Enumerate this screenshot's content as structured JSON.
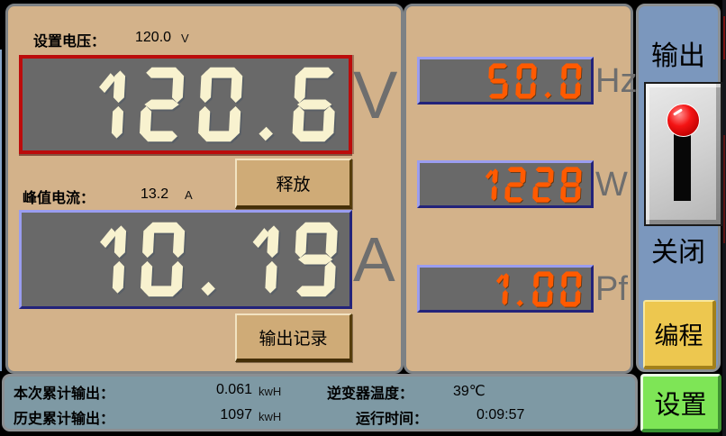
{
  "left_panel": {
    "set_voltage_label": "设置电压：",
    "set_voltage_value": "120.0",
    "set_voltage_unit": "V",
    "voltage_value": "120.6",
    "voltage_unit": "V",
    "release_button": "释放",
    "peak_current_label": "峰值电流：",
    "peak_current_value": "13.2",
    "peak_current_unit": "A",
    "current_value": "10.19",
    "current_unit": "A",
    "output_record_button": "输出记录"
  },
  "middle_panel": {
    "frequency_value": "50.0",
    "frequency_unit": "Hz",
    "power_value": "1228",
    "power_unit": "W",
    "power_factor_value": "1.00",
    "power_factor_unit": "Pf"
  },
  "right_panel": {
    "output_label": "输出",
    "switch_state": "关闭",
    "program_button": "编程",
    "settings_button": "设置"
  },
  "status_bar": {
    "session_label": "本次累计输出：",
    "session_value": "0.061",
    "session_unit": "kwH",
    "history_label": "历史累计输出：",
    "history_value": "1097",
    "history_unit": "kwH",
    "temp_label": "逆变器温度：",
    "temp_value": "39℃",
    "runtime_label": "运行时间：",
    "runtime_value": "0:09:57"
  },
  "colors": {
    "panel_tan": "#d3b28a",
    "panel_blue": "#7b97bd",
    "status_bar_bg": "#7e99a4",
    "segment_cream": "#f8f2cf",
    "segment_orange": "#ff5a00",
    "display_bg": "#696969",
    "display_border_red": "#bb0c0c",
    "display_border_blue": "#9a9df0",
    "button_tan": "#cfab77",
    "button_yellow": "#edc74f",
    "button_green": "#7ee556",
    "switch_knob_red": "#f41414"
  }
}
